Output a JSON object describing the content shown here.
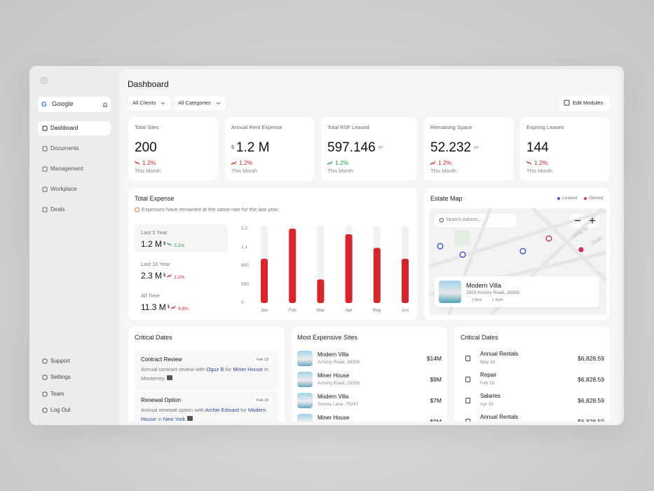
{
  "sidebar": {
    "brand": "Google",
    "nav": [
      "Dashboard",
      "Documents",
      "Management",
      "Workplace",
      "Deals"
    ],
    "footer": [
      "Support",
      "Settings",
      "Team",
      "Log Out"
    ]
  },
  "header": {
    "title": "Dashboard",
    "filters": [
      "All Clients",
      "All Categories"
    ],
    "button": "Edit Modules"
  },
  "stats": [
    {
      "label": "Total Sites",
      "value": "200",
      "change": "1.2%",
      "period": "This Month",
      "trend": "down",
      "color": "#d9252a"
    },
    {
      "label": "Annual Rent Expense",
      "prefix": "$",
      "value": "1.2 M",
      "change": "1.2%",
      "period": "This Month",
      "trend": "up",
      "color": "#d9252a"
    },
    {
      "label": "Total RSF Leased",
      "value": "597.146",
      "unit": "m²",
      "change": "1.2%",
      "period": "This Month",
      "trend": "up",
      "color": "#2a9d4b"
    },
    {
      "label": "Remaining Space",
      "value": "52.232",
      "unit": "m²",
      "change": "1.2%",
      "period": "This Month",
      "trend": "up",
      "color": "#d9252a"
    },
    {
      "label": "Expiring Leases",
      "value": "144",
      "change": "1.2%",
      "period": "This Month",
      "trend": "down",
      "color": "#d9252a"
    }
  ],
  "total_expense": {
    "title": "Total Expense",
    "note": "Expenses have remained at the same rate for the last year.",
    "summaries": [
      {
        "label": "Last 5 Year",
        "value": "1.2 M",
        "unit": "$",
        "change": "5.2%",
        "trend": "down",
        "color": "#2a9d4b"
      },
      {
        "label": "Last 10 Year",
        "value": "2.3 M",
        "unit": "$",
        "change": "1.2%",
        "trend": "up",
        "color": "#d9252a"
      },
      {
        "label": "All Time",
        "value": "11.3 M",
        "unit": "$",
        "change": "6.8%",
        "trend": "up",
        "color": "#d9252a"
      }
    ]
  },
  "chart_data": {
    "type": "bar",
    "categories": [
      "Jan",
      "Feb",
      "Mar",
      "Apr",
      "May",
      "Jun"
    ],
    "values": [
      915,
      1200,
      580,
      1170,
      1090,
      915
    ],
    "color": "#d9252a",
    "ylim": [
      0,
      1200
    ],
    "yticks": [
      0,
      500,
      800,
      {
        "value": 1100,
        "label": "1.1"
      },
      {
        "value": 1200,
        "label": "1.2"
      }
    ],
    "grid": false
  },
  "estate_map": {
    "title": "Estate Map",
    "legend": [
      {
        "name": "Leased",
        "color": "#3b5bdb"
      },
      {
        "name": "Owned",
        "color": "#d6336c"
      }
    ],
    "search": "Search Adress...",
    "streets": [
      "Jose N",
      "Juan"
    ],
    "card": {
      "name": "Modern Villa",
      "address": "2503 Armory Road, 28358",
      "beds": "3 Bed",
      "baths": "1 Bath"
    }
  },
  "critical_dates": {
    "title": "Critical Dates",
    "items": [
      {
        "title": "Contract Review",
        "date": "Feb 19",
        "parts": [
          "Annual contract review with ",
          "Oguz B",
          " for ",
          "Miner House",
          " in Monterrey"
        ]
      },
      {
        "title": "Renewal Option",
        "date": "Feb 19",
        "parts": [
          "Annual renewal option with ",
          "Archie Edward",
          " for ",
          "Modern House",
          " in ",
          "New York"
        ]
      }
    ]
  },
  "expensive_sites": {
    "title": "Most Expensive Sites",
    "rows": [
      {
        "name": "Modern Villa",
        "address": "Armory Road, 28358",
        "price": "$14M"
      },
      {
        "name": "Miner House",
        "address": "Armory Road, 28358",
        "price": "$9M"
      },
      {
        "name": "Modern Villa",
        "address": "Stoney Lane, 75247",
        "price": "$7M"
      },
      {
        "name": "Miner House",
        "price": "$9M"
      }
    ]
  },
  "payments": {
    "title": "Critical Dates",
    "rows": [
      {
        "name": "Annual Rentals",
        "date": "May 30",
        "amount": "$6,828.59"
      },
      {
        "name": "Repair",
        "date": "Feb 19",
        "amount": "$6,828.59"
      },
      {
        "name": "Salaries",
        "date": "Apr 30",
        "amount": "$6,828.59"
      },
      {
        "name": "Annual Rentals",
        "amount": "$6,828.59"
      }
    ]
  }
}
